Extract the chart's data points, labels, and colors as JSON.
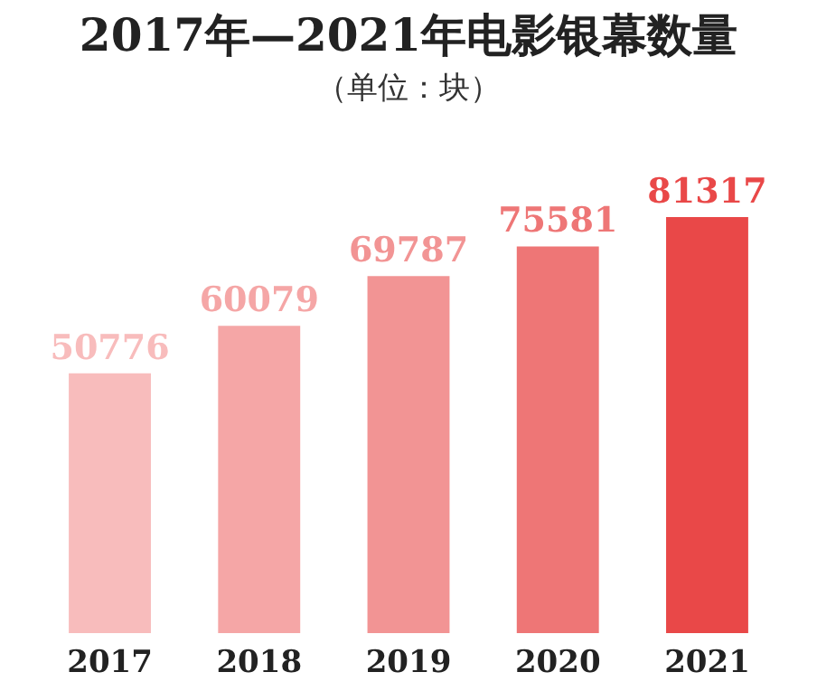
{
  "chart_data": {
    "type": "bar",
    "title": "2017年—2021年电影银幕数量",
    "subtitle": "（单位：块）",
    "categories": [
      "2017",
      "2018",
      "2019",
      "2020",
      "2021"
    ],
    "values": [
      50776,
      60079,
      69787,
      75581,
      81317
    ],
    "colors": [
      "#f8bcbc",
      "#f5a6a6",
      "#f29494",
      "#ee7676",
      "#e94848"
    ],
    "data_labels": true
  }
}
